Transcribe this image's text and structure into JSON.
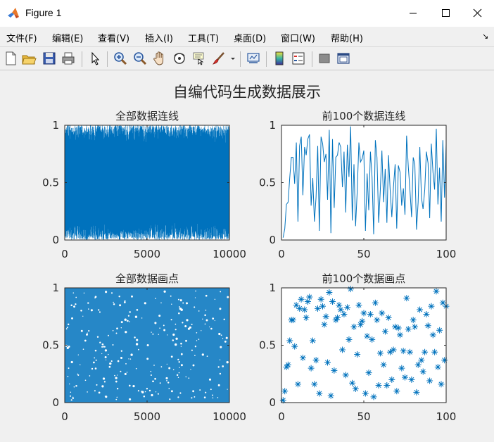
{
  "window": {
    "title": "Figure 1"
  },
  "menu": [
    "文件(F)",
    "编辑(E)",
    "查看(V)",
    "插入(I)",
    "工具(T)",
    "桌面(D)",
    "窗口(W)",
    "帮助(H)"
  ],
  "toolbar": {
    "icons": [
      "new-figure-icon",
      "open-file-icon",
      "save-icon",
      "print-icon",
      "pointer-icon",
      "zoom-in-icon",
      "zoom-out-icon",
      "pan-hand-icon",
      "rotate-3d-icon",
      "data-cursor-icon",
      "brush-icon",
      "brush-dropdown-icon",
      "link-plot-icon",
      "colorbar-icon",
      "legend-icon",
      "hide-plot-tools-icon",
      "show-plot-tools-icon"
    ]
  },
  "figure": {
    "suptitle": "自编代码生成数据展示",
    "colors": {
      "series": "#0072bd",
      "axes_bg": "#ffffff",
      "fig_bg": "#f0f0f0"
    }
  },
  "chart_data": [
    {
      "type": "line",
      "title": "全部数据连线",
      "xlim": [
        0,
        10000
      ],
      "ylim": [
        0,
        1
      ],
      "xticks": [
        "0",
        "5000",
        "10000"
      ],
      "yticks": [
        "0",
        "0.5",
        "1"
      ],
      "n_points": 10000,
      "distribution": "uniform random in [0,1]"
    },
    {
      "type": "line",
      "title": "前100个数据连线",
      "xlim": [
        0,
        100
      ],
      "ylim": [
        0,
        1
      ],
      "xticks": [
        "0",
        "50",
        "100"
      ],
      "yticks": [
        "0",
        "0.5",
        "1"
      ],
      "x": [
        1,
        2,
        3,
        4,
        5,
        6,
        7,
        8,
        9,
        10,
        11,
        12,
        13,
        14,
        15,
        16,
        17,
        18,
        19,
        20,
        21,
        22,
        23,
        24,
        25,
        26,
        27,
        28,
        29,
        30,
        31,
        32,
        33,
        34,
        35,
        36,
        37,
        38,
        39,
        40,
        41,
        42,
        43,
        44,
        45,
        46,
        47,
        48,
        49,
        50,
        51,
        52,
        53,
        54,
        55,
        56,
        57,
        58,
        59,
        60,
        61,
        62,
        63,
        64,
        65,
        66,
        67,
        68,
        69,
        70,
        71,
        72,
        73,
        74,
        75,
        76,
        77,
        78,
        79,
        80,
        81,
        82,
        83,
        84,
        85,
        86,
        87,
        88,
        89,
        90,
        91,
        92,
        93,
        94,
        95,
        96,
        97,
        98,
        99,
        100
      ],
      "y": [
        0.02,
        0.1,
        0.31,
        0.33,
        0.54,
        0.72,
        0.72,
        0.49,
        0.85,
        0.16,
        0.82,
        0.9,
        0.39,
        0.81,
        0.74,
        0.88,
        0.92,
        0.3,
        0.54,
        0.16,
        0.37,
        0.82,
        0.08,
        0.9,
        0.84,
        0.68,
        0.75,
        0.35,
        0.96,
        0.06,
        0.88,
        0.28,
        0.72,
        0.74,
        0.85,
        0.81,
        0.46,
        0.77,
        0.24,
        0.83,
        0.55,
        0.99,
        0.17,
        0.66,
        0.12,
        0.42,
        0.85,
        0.68,
        0.71,
        0.78,
        0.08,
        0.58,
        0.26,
        0.77,
        0.55,
        0.05,
        0.87,
        0.72,
        0.15,
        0.43,
        0.78,
        0.33,
        0.62,
        0.15,
        0.74,
        0.44,
        0.2,
        0.46,
        0.66,
        0.1,
        0.65,
        0.59,
        0.3,
        0.45,
        0.22,
        0.91,
        0.64,
        0.44,
        0.2,
        0.72,
        0.66,
        0.09,
        0.33,
        0.81,
        0.37,
        0.27,
        0.44,
        0.77,
        0.67,
        0.19,
        0.84,
        0.59,
        0.44,
        0.97,
        0.31,
        0.63,
        0.16,
        0.87,
        0.37,
        0.84
      ]
    },
    {
      "type": "scatter",
      "title": "全部数据画点",
      "xlim": [
        0,
        10000
      ],
      "ylim": [
        0,
        1
      ],
      "xticks": [
        "0",
        "5000",
        "10000"
      ],
      "yticks": [
        "0",
        "0.5",
        "1"
      ],
      "marker": "dot",
      "n_points": 10000,
      "distribution": "uniform random in [0,1]"
    },
    {
      "type": "scatter",
      "title": "前100个数据画点",
      "xlim": [
        0,
        100
      ],
      "ylim": [
        0,
        1
      ],
      "xticks": [
        "0",
        "50",
        "100"
      ],
      "yticks": [
        "0",
        "0.5",
        "1"
      ],
      "marker": "*",
      "x": [
        1,
        2,
        3,
        4,
        5,
        6,
        7,
        8,
        9,
        10,
        11,
        12,
        13,
        14,
        15,
        16,
        17,
        18,
        19,
        20,
        21,
        22,
        23,
        24,
        25,
        26,
        27,
        28,
        29,
        30,
        31,
        32,
        33,
        34,
        35,
        36,
        37,
        38,
        39,
        40,
        41,
        42,
        43,
        44,
        45,
        46,
        47,
        48,
        49,
        50,
        51,
        52,
        53,
        54,
        55,
        56,
        57,
        58,
        59,
        60,
        61,
        62,
        63,
        64,
        65,
        66,
        67,
        68,
        69,
        70,
        71,
        72,
        73,
        74,
        75,
        76,
        77,
        78,
        79,
        80,
        81,
        82,
        83,
        84,
        85,
        86,
        87,
        88,
        89,
        90,
        91,
        92,
        93,
        94,
        95,
        96,
        97,
        98,
        99,
        100
      ],
      "y": [
        0.02,
        0.1,
        0.31,
        0.33,
        0.54,
        0.72,
        0.72,
        0.49,
        0.85,
        0.16,
        0.82,
        0.9,
        0.39,
        0.81,
        0.74,
        0.88,
        0.92,
        0.3,
        0.54,
        0.16,
        0.37,
        0.82,
        0.08,
        0.9,
        0.84,
        0.68,
        0.75,
        0.35,
        0.96,
        0.06,
        0.88,
        0.28,
        0.72,
        0.74,
        0.85,
        0.81,
        0.46,
        0.77,
        0.24,
        0.83,
        0.55,
        0.99,
        0.17,
        0.66,
        0.12,
        0.42,
        0.85,
        0.68,
        0.71,
        0.78,
        0.08,
        0.58,
        0.26,
        0.77,
        0.55,
        0.05,
        0.87,
        0.72,
        0.15,
        0.43,
        0.78,
        0.33,
        0.62,
        0.15,
        0.74,
        0.44,
        0.2,
        0.46,
        0.66,
        0.1,
        0.65,
        0.59,
        0.3,
        0.45,
        0.22,
        0.91,
        0.64,
        0.44,
        0.2,
        0.72,
        0.66,
        0.09,
        0.33,
        0.81,
        0.37,
        0.27,
        0.44,
        0.77,
        0.67,
        0.19,
        0.84,
        0.59,
        0.44,
        0.97,
        0.31,
        0.63,
        0.16,
        0.87,
        0.37,
        0.84
      ]
    }
  ]
}
